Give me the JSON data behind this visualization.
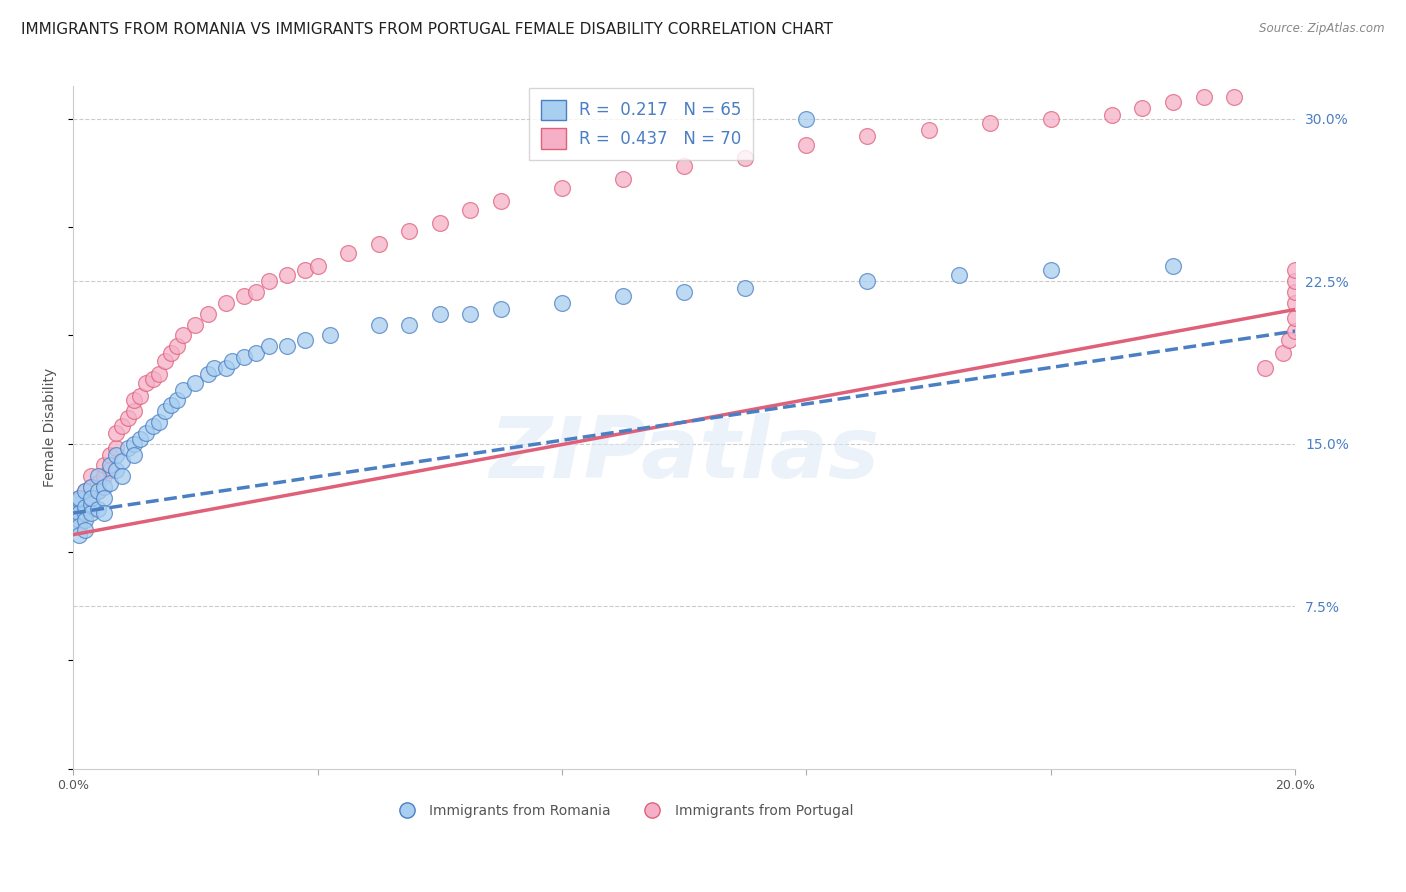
{
  "title": "IMMIGRANTS FROM ROMANIA VS IMMIGRANTS FROM PORTUGAL FEMALE DISABILITY CORRELATION CHART",
  "source": "Source: ZipAtlas.com",
  "ylabel": "Female Disability",
  "xlim": [
    0.0,
    0.2
  ],
  "ylim": [
    0.0,
    0.315
  ],
  "xticks": [
    0.0,
    0.04,
    0.08,
    0.12,
    0.16,
    0.2
  ],
  "xticklabels": [
    "0.0%",
    "",
    "",
    "",
    "",
    "20.0%"
  ],
  "yticks_right": [
    0.075,
    0.15,
    0.225,
    0.3
  ],
  "yticklabels_right": [
    "7.5%",
    "15.0%",
    "22.5%",
    "30.0%"
  ],
  "legend_r1": "R =  0.217   N = 65",
  "legend_r2": "R =  0.437   N = 70",
  "legend_label1": "Immigrants from Romania",
  "legend_label2": "Immigrants from Portugal",
  "color_romania": "#a8cef0",
  "color_portugal": "#f5b0c8",
  "trendline_romania_color": "#4a7fc4",
  "trendline_portugal_color": "#e0607a",
  "background_color": "#ffffff",
  "grid_color": "#cccccc",
  "title_fontsize": 11,
  "axis_label_fontsize": 10,
  "tick_fontsize": 9,
  "watermark": "ZIPatlas",
  "romania_x": [
    0.001,
    0.001,
    0.001,
    0.001,
    0.001,
    0.001,
    0.001,
    0.001,
    0.002,
    0.002,
    0.002,
    0.002,
    0.002,
    0.003,
    0.003,
    0.003,
    0.003,
    0.004,
    0.004,
    0.004,
    0.005,
    0.005,
    0.005,
    0.006,
    0.006,
    0.007,
    0.007,
    0.008,
    0.008,
    0.009,
    0.01,
    0.01,
    0.011,
    0.012,
    0.013,
    0.014,
    0.015,
    0.016,
    0.017,
    0.018,
    0.02,
    0.022,
    0.023,
    0.025,
    0.026,
    0.028,
    0.03,
    0.032,
    0.035,
    0.038,
    0.042,
    0.05,
    0.055,
    0.06,
    0.065,
    0.07,
    0.08,
    0.09,
    0.1,
    0.11,
    0.12,
    0.13,
    0.145,
    0.16,
    0.18
  ],
  "romania_y": [
    0.12,
    0.122,
    0.124,
    0.115,
    0.118,
    0.112,
    0.108,
    0.125,
    0.118,
    0.121,
    0.115,
    0.128,
    0.11,
    0.122,
    0.118,
    0.13,
    0.125,
    0.135,
    0.128,
    0.12,
    0.13,
    0.125,
    0.118,
    0.14,
    0.132,
    0.138,
    0.145,
    0.142,
    0.135,
    0.148,
    0.15,
    0.145,
    0.152,
    0.155,
    0.158,
    0.16,
    0.165,
    0.168,
    0.17,
    0.175,
    0.178,
    0.182,
    0.185,
    0.185,
    0.188,
    0.19,
    0.192,
    0.195,
    0.195,
    0.198,
    0.2,
    0.205,
    0.205,
    0.21,
    0.21,
    0.212,
    0.215,
    0.218,
    0.22,
    0.222,
    0.3,
    0.225,
    0.228,
    0.23,
    0.232
  ],
  "portugal_x": [
    0.001,
    0.001,
    0.001,
    0.001,
    0.001,
    0.002,
    0.002,
    0.002,
    0.003,
    0.003,
    0.003,
    0.003,
    0.004,
    0.004,
    0.005,
    0.005,
    0.006,
    0.006,
    0.007,
    0.007,
    0.008,
    0.009,
    0.01,
    0.01,
    0.011,
    0.012,
    0.013,
    0.014,
    0.015,
    0.016,
    0.017,
    0.018,
    0.02,
    0.022,
    0.025,
    0.028,
    0.03,
    0.032,
    0.035,
    0.038,
    0.04,
    0.045,
    0.05,
    0.055,
    0.06,
    0.065,
    0.07,
    0.08,
    0.09,
    0.1,
    0.11,
    0.12,
    0.13,
    0.14,
    0.15,
    0.16,
    0.17,
    0.175,
    0.18,
    0.185,
    0.19,
    0.195,
    0.198,
    0.199,
    0.2,
    0.2,
    0.2,
    0.2,
    0.2,
    0.2
  ],
  "portugal_y": [
    0.118,
    0.122,
    0.115,
    0.12,
    0.125,
    0.118,
    0.122,
    0.128,
    0.12,
    0.125,
    0.13,
    0.135,
    0.128,
    0.132,
    0.135,
    0.14,
    0.145,
    0.138,
    0.148,
    0.155,
    0.158,
    0.162,
    0.165,
    0.17,
    0.172,
    0.178,
    0.18,
    0.182,
    0.188,
    0.192,
    0.195,
    0.2,
    0.205,
    0.21,
    0.215,
    0.218,
    0.22,
    0.225,
    0.228,
    0.23,
    0.232,
    0.238,
    0.242,
    0.248,
    0.252,
    0.258,
    0.262,
    0.268,
    0.272,
    0.278,
    0.282,
    0.288,
    0.292,
    0.295,
    0.298,
    0.3,
    0.302,
    0.305,
    0.308,
    0.31,
    0.312,
    0.185,
    0.192,
    0.198,
    0.202,
    0.208,
    0.215,
    0.22,
    0.225,
    0.23
  ]
}
